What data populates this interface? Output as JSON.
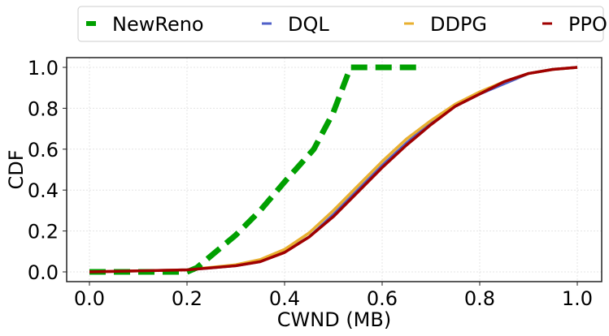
{
  "chart_data": {
    "type": "line",
    "title": "",
    "xlabel": "CWND (MB)",
    "ylabel": "CDF",
    "xlim": [
      -0.04,
      1.05
    ],
    "ylim": [
      -0.05,
      1.05
    ],
    "xticks": [
      "0.0",
      "0.2",
      "0.4",
      "0.6",
      "0.8",
      "1.0"
    ],
    "yticks": [
      "0.0",
      "0.2",
      "0.4",
      "0.6",
      "0.8",
      "1.0"
    ],
    "grid": true,
    "legend_position": "top, outside",
    "series": [
      {
        "name": "NewReno",
        "color": "#00a000",
        "style": "dashed",
        "x": [
          0.0,
          0.2,
          0.22,
          0.25,
          0.3,
          0.35,
          0.4,
          0.46,
          0.5,
          0.535,
          0.67
        ],
        "y": [
          0.0,
          0.0,
          0.02,
          0.08,
          0.18,
          0.3,
          0.44,
          0.6,
          0.78,
          1.0,
          1.0
        ]
      },
      {
        "name": "DQL",
        "color": "#5060c8",
        "style": "solid",
        "x": [
          0.0,
          0.1,
          0.2,
          0.3,
          0.35,
          0.4,
          0.45,
          0.5,
          0.55,
          0.6,
          0.65,
          0.7,
          0.75,
          0.8,
          0.85,
          0.9,
          0.95,
          1.0
        ],
        "y": [
          0.0,
          0.005,
          0.01,
          0.03,
          0.05,
          0.1,
          0.17,
          0.28,
          0.4,
          0.52,
          0.63,
          0.73,
          0.81,
          0.87,
          0.92,
          0.97,
          0.99,
          1.0
        ]
      },
      {
        "name": "DDPG",
        "color": "#e8b030",
        "style": "solid",
        "x": [
          0.0,
          0.1,
          0.2,
          0.3,
          0.35,
          0.4,
          0.45,
          0.5,
          0.55,
          0.6,
          0.65,
          0.7,
          0.75,
          0.8,
          0.85,
          0.9,
          0.95,
          1.0
        ],
        "y": [
          0.0,
          0.005,
          0.01,
          0.035,
          0.06,
          0.11,
          0.19,
          0.3,
          0.42,
          0.54,
          0.65,
          0.74,
          0.82,
          0.88,
          0.93,
          0.97,
          0.99,
          1.0
        ]
      },
      {
        "name": "PPO",
        "color": "#a00000",
        "style": "solid",
        "x": [
          0.0,
          0.1,
          0.2,
          0.3,
          0.35,
          0.4,
          0.45,
          0.5,
          0.55,
          0.6,
          0.65,
          0.7,
          0.75,
          0.8,
          0.85,
          0.9,
          0.95,
          1.0
        ],
        "y": [
          0.0,
          0.005,
          0.01,
          0.03,
          0.05,
          0.095,
          0.17,
          0.27,
          0.39,
          0.51,
          0.62,
          0.72,
          0.81,
          0.87,
          0.93,
          0.97,
          0.99,
          1.0
        ]
      }
    ]
  }
}
